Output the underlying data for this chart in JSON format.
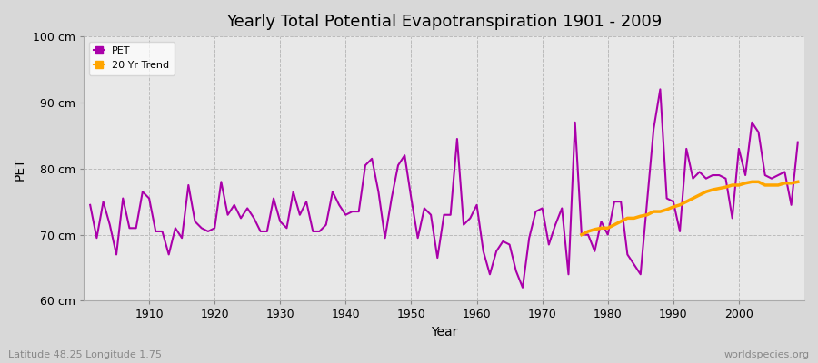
{
  "title": "Yearly Total Potential Evapotranspiration 1901 - 2009",
  "ylabel": "PET",
  "xlabel": "Year",
  "bottom_left_text": "Latitude 48.25 Longitude 1.75",
  "bottom_right_text": "worldspecies.org",
  "ylim": [
    60,
    100
  ],
  "ytick_labels": [
    "60 cm",
    "70 cm",
    "80 cm",
    "90 cm",
    "100 cm"
  ],
  "ytick_values": [
    60,
    70,
    80,
    90,
    100
  ],
  "bg_color": "#e8e8e8",
  "plot_bg_color": "#ebebeb",
  "pet_color": "#aa00aa",
  "trend_color": "#ffa500",
  "pet_linewidth": 1.5,
  "trend_linewidth": 2.5,
  "years": [
    1901,
    1902,
    1903,
    1904,
    1905,
    1906,
    1907,
    1908,
    1909,
    1910,
    1911,
    1912,
    1913,
    1914,
    1915,
    1916,
    1917,
    1918,
    1919,
    1920,
    1921,
    1922,
    1923,
    1924,
    1925,
    1926,
    1927,
    1928,
    1929,
    1930,
    1931,
    1932,
    1933,
    1934,
    1935,
    1936,
    1937,
    1938,
    1939,
    1940,
    1941,
    1942,
    1943,
    1944,
    1945,
    1946,
    1947,
    1948,
    1949,
    1950,
    1951,
    1952,
    1953,
    1954,
    1955,
    1956,
    1957,
    1958,
    1959,
    1960,
    1961,
    1962,
    1963,
    1964,
    1965,
    1966,
    1967,
    1968,
    1969,
    1970,
    1971,
    1972,
    1973,
    1974,
    1975,
    1976,
    1977,
    1978,
    1979,
    1980,
    1981,
    1982,
    1983,
    1984,
    1985,
    1986,
    1987,
    1988,
    1989,
    1990,
    1991,
    1992,
    1993,
    1994,
    1995,
    1996,
    1997,
    1998,
    1999,
    2000,
    2001,
    2002,
    2003,
    2004,
    2005,
    2006,
    2007,
    2008,
    2009
  ],
  "pet_values": [
    74.5,
    69.5,
    75.0,
    71.5,
    67.0,
    75.5,
    71.0,
    71.0,
    76.5,
    75.5,
    70.5,
    70.5,
    67.0,
    71.0,
    69.5,
    77.5,
    72.0,
    71.0,
    70.5,
    71.0,
    78.0,
    73.0,
    74.5,
    72.5,
    74.0,
    72.5,
    70.5,
    70.5,
    75.5,
    72.0,
    71.0,
    76.5,
    73.0,
    75.0,
    70.5,
    70.5,
    71.5,
    76.5,
    74.5,
    73.0,
    73.5,
    73.5,
    80.5,
    81.5,
    76.5,
    69.5,
    75.5,
    80.5,
    82.0,
    75.5,
    69.5,
    74.0,
    73.0,
    66.5,
    73.0,
    73.0,
    84.5,
    71.5,
    72.5,
    74.5,
    67.5,
    64.0,
    67.5,
    69.0,
    68.5,
    64.5,
    62.0,
    69.5,
    73.5,
    74.0,
    68.5,
    71.5,
    74.0,
    64.0,
    87.0,
    70.0,
    70.0,
    67.5,
    72.0,
    70.0,
    75.0,
    75.0,
    67.0,
    65.5,
    64.0,
    75.0,
    86.0,
    92.0,
    75.5,
    75.0,
    70.5,
    83.0,
    78.5,
    79.5,
    78.5,
    79.0,
    79.0,
    78.5,
    72.5,
    83.0,
    79.0,
    87.0,
    85.5,
    79.0,
    78.5,
    79.0,
    79.5,
    74.5,
    84.0
  ],
  "trend_years": [
    1976,
    1977,
    1978,
    1979,
    1980,
    1981,
    1982,
    1983,
    1984,
    1985,
    1986,
    1987,
    1988,
    1989,
    1990,
    1991,
    1992,
    1993,
    1994,
    1995,
    1996,
    1997,
    1998,
    1999,
    2000,
    2001,
    2002,
    2003,
    2004,
    2005,
    2006,
    2007,
    2008,
    2009
  ],
  "trend_values": [
    70.0,
    70.5,
    70.8,
    71.0,
    71.0,
    71.5,
    72.0,
    72.5,
    72.5,
    72.8,
    73.0,
    73.5,
    73.5,
    73.8,
    74.2,
    74.5,
    75.0,
    75.5,
    76.0,
    76.5,
    76.8,
    77.0,
    77.2,
    77.5,
    77.5,
    77.8,
    78.0,
    78.0,
    77.5,
    77.5,
    77.5,
    77.8,
    77.8,
    78.0
  ]
}
